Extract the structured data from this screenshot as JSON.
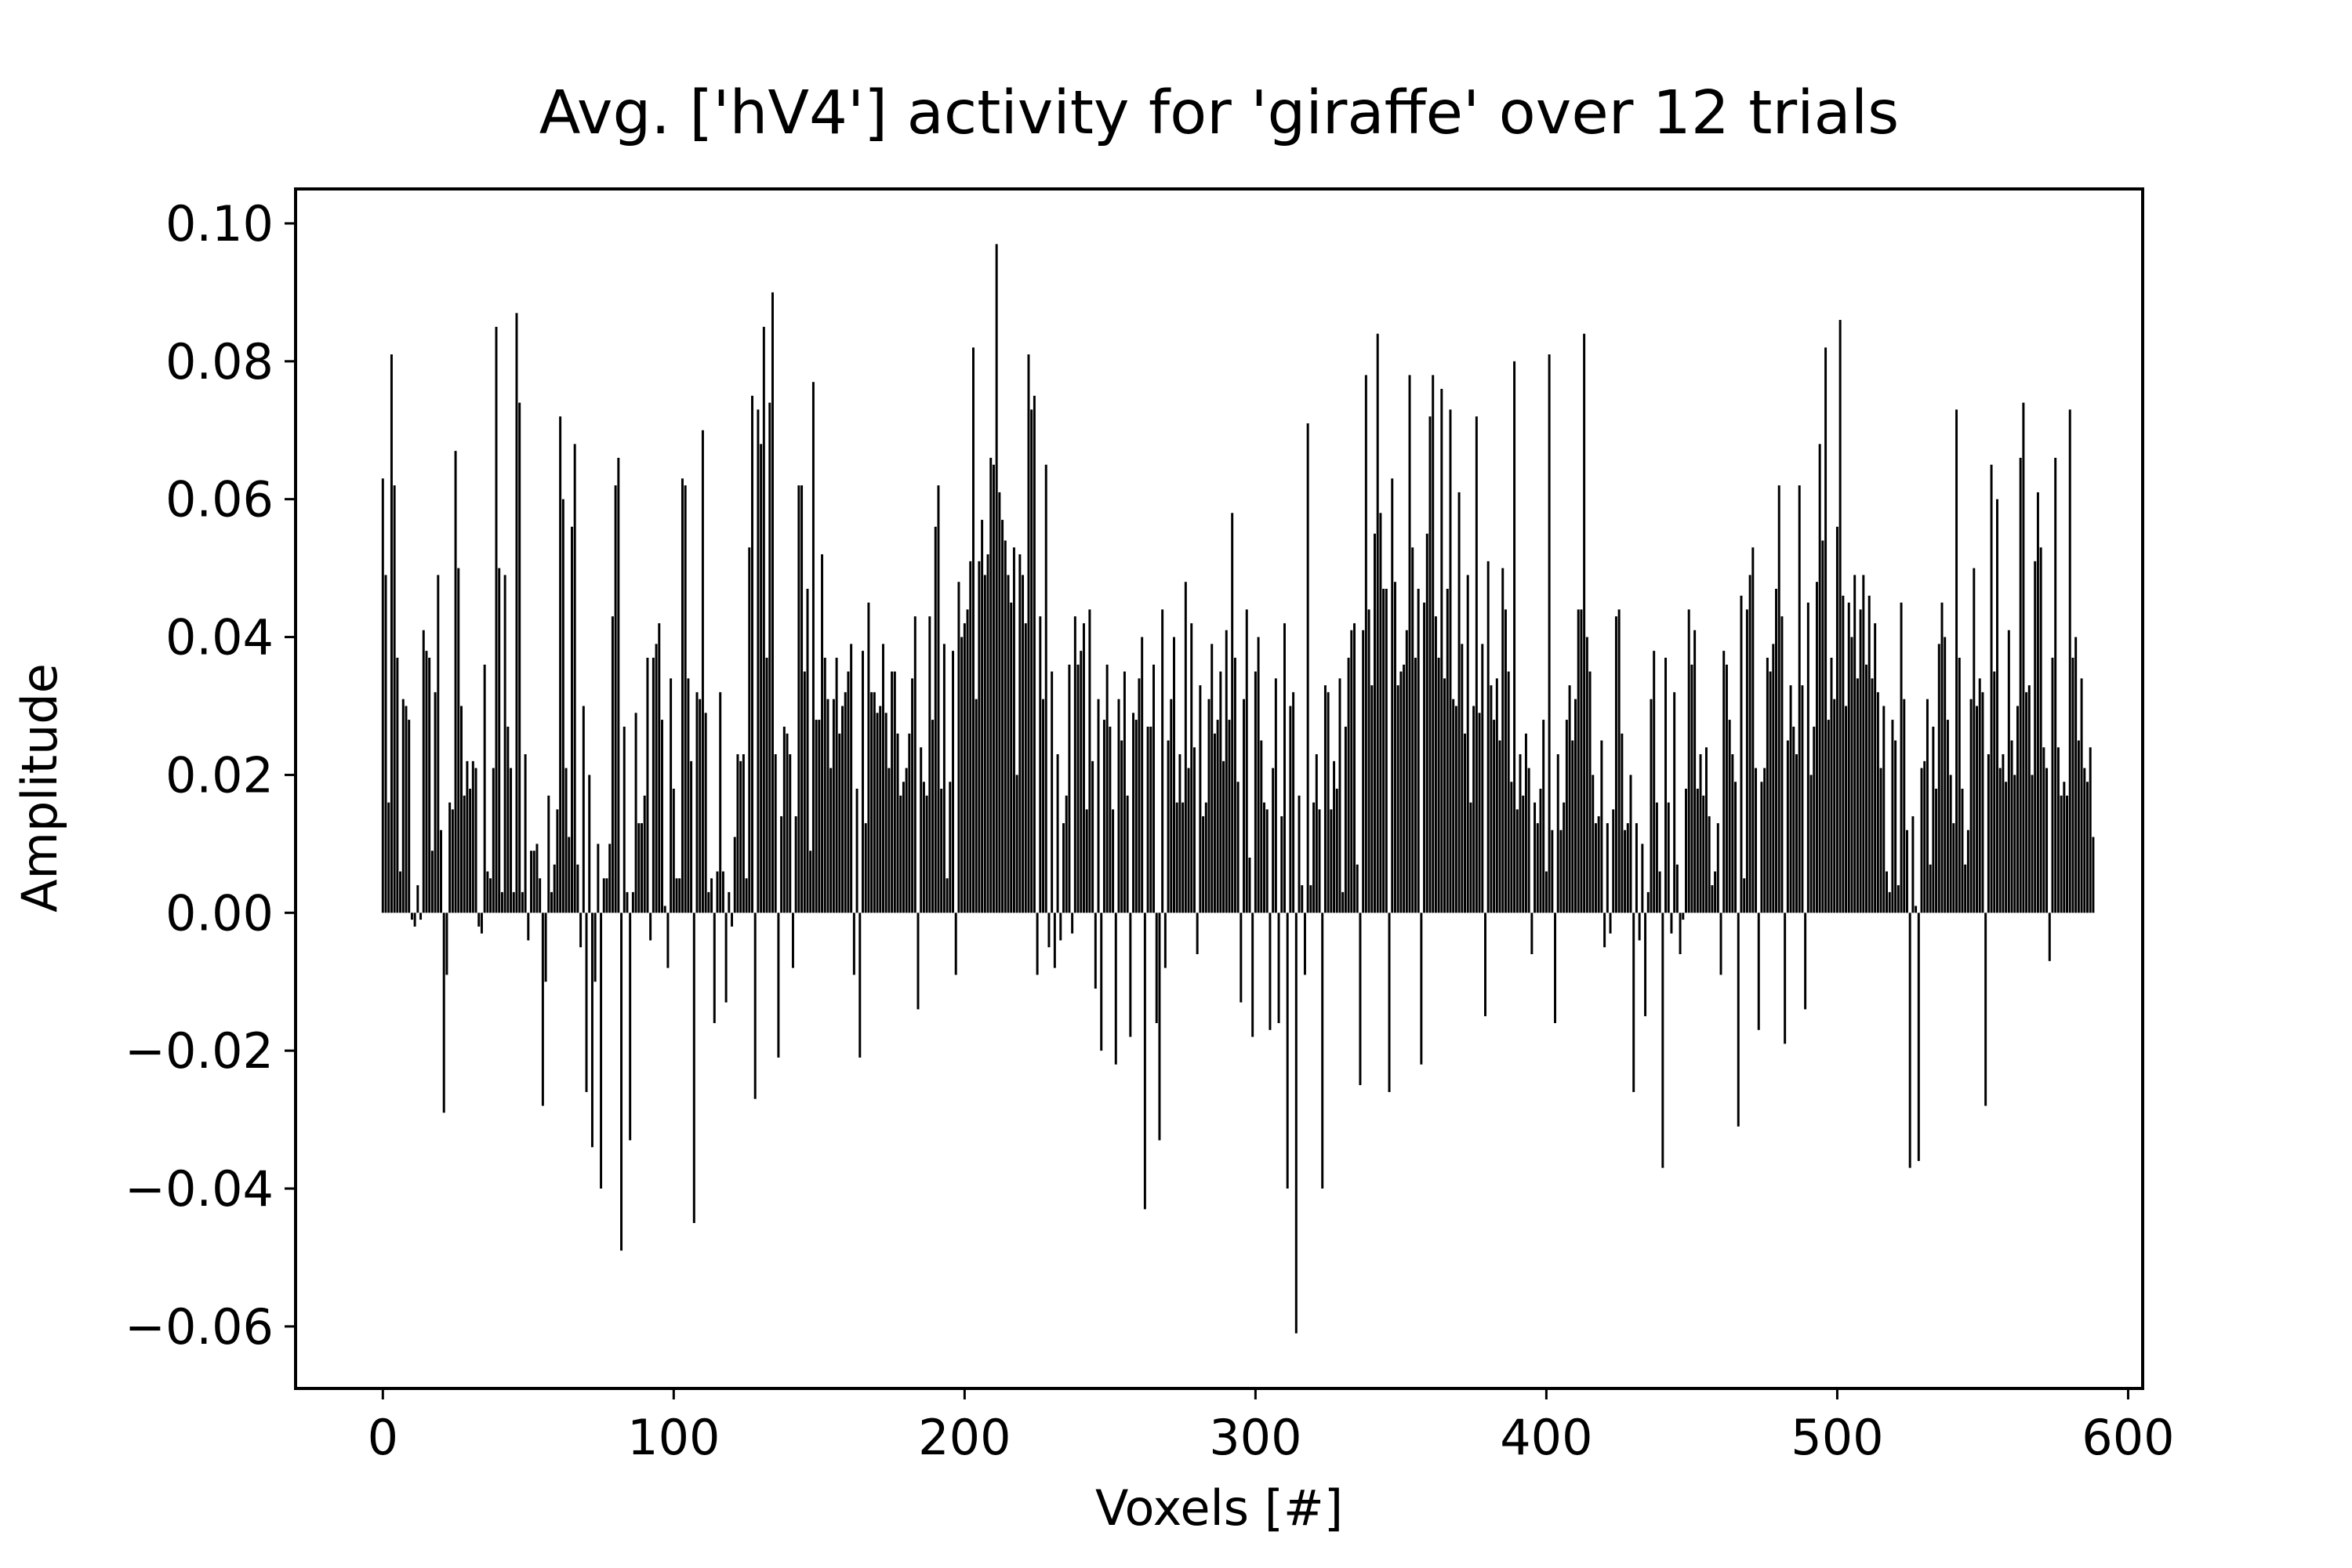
{
  "chart_data": {
    "type": "bar",
    "title": "Avg. ['hV4'] activity for 'giraffe' over 12 trials",
    "xlabel": "Voxels [#]",
    "ylabel": "Amplitude",
    "xlim": [
      -30,
      605
    ],
    "ylim": [
      -0.069,
      0.105
    ],
    "xticks": [
      0,
      100,
      200,
      300,
      400,
      500,
      600
    ],
    "xtick_labels": [
      "0",
      "100",
      "200",
      "300",
      "400",
      "500",
      "600"
    ],
    "yticks": [
      -0.06,
      -0.04,
      -0.02,
      0.0,
      0.02,
      0.04,
      0.06,
      0.08,
      0.1
    ],
    "ytick_labels": [
      "−0.06",
      "−0.04",
      "−0.02",
      "0.00",
      "0.02",
      "0.04",
      "0.06",
      "0.08",
      "0.10"
    ],
    "grid": false,
    "bar_color": "#000000",
    "series": [
      {
        "x_start": 0,
        "values": [
          0.063,
          0.049,
          0.016,
          0.081,
          0.062,
          0.037,
          0.006,
          0.031,
          0.03,
          0.028,
          -0.001,
          -0.002,
          0.004,
          -0.001,
          0.041,
          0.038,
          0.037,
          0.009,
          0.032,
          0.049,
          0.012,
          -0.029,
          -0.009,
          0.016,
          0.015,
          0.067,
          0.05,
          0.03,
          0.017,
          0.022,
          0.018,
          0.022,
          0.021,
          -0.002,
          -0.003,
          0.036,
          0.006,
          0.005,
          0.021,
          0.085,
          0.05,
          0.003,
          0.049,
          0.027,
          0.021,
          0.003,
          0.087,
          0.074,
          0.003,
          0.023,
          -0.004,
          0.009,
          0.009,
          0.01,
          0.005,
          -0.028,
          -0.01,
          0.017,
          0.003,
          0.007,
          0.015,
          0.072,
          0.06,
          0.021,
          0.011,
          0.056,
          0.068,
          0.007,
          -0.005,
          0.03,
          -0.026,
          0.02,
          -0.034,
          -0.01,
          0.01,
          -0.04,
          0.005,
          0.005,
          0.01,
          0.043,
          0.062,
          0.066,
          -0.049,
          0.027,
          0.003,
          -0.033,
          0.003,
          0.029,
          0.013,
          0.013,
          0.017,
          0.037,
          -0.004,
          0.037,
          0.039,
          0.042,
          0.028,
          0.001,
          -0.008,
          0.034,
          0.018,
          0.005,
          0.005,
          0.063,
          0.062,
          0.034,
          0.022,
          -0.045,
          0.032,
          0.031,
          0.07,
          0.029,
          0.003,
          0.005,
          -0.016,
          0.006,
          0.032,
          0.006,
          -0.013,
          0.003,
          -0.002,
          0.011,
          0.023,
          0.022,
          0.023,
          0.005,
          0.053,
          0.075,
          -0.027,
          0.073,
          0.068,
          0.085,
          0.037,
          0.074,
          0.09,
          0.023,
          -0.021,
          0.014,
          0.027,
          0.026,
          0.023,
          -0.008,
          0.014,
          0.062,
          0.062,
          0.035,
          0.047,
          0.009,
          0.077,
          0.028,
          0.028,
          0.052,
          0.037,
          0.031,
          0.021,
          0.031,
          0.037,
          0.026,
          0.03,
          0.032,
          0.035,
          0.039,
          -0.009,
          0.018,
          -0.021,
          0.038,
          0.013,
          0.045,
          0.032,
          0.032,
          0.029,
          0.03,
          0.039,
          0.029,
          0.021,
          0.035,
          0.035,
          0.026,
          0.017,
          0.019,
          0.021,
          0.026,
          0.034,
          0.043,
          -0.014,
          0.024,
          0.019,
          0.017,
          0.043,
          0.028,
          0.056,
          0.062,
          0.018,
          0.039,
          0.005,
          0.019,
          0.038,
          -0.009,
          0.048,
          0.04,
          0.042,
          0.044,
          0.051,
          0.082,
          0.031,
          0.051,
          0.057,
          0.049,
          0.052,
          0.066,
          0.065,
          0.097,
          0.061,
          0.057,
          0.054,
          0.049,
          0.045,
          0.053,
          0.02,
          0.052,
          0.049,
          0.042,
          0.081,
          0.073,
          0.075,
          -0.009,
          0.043,
          0.031,
          0.065,
          -0.005,
          0.035,
          -0.008,
          0.023,
          -0.004,
          0.013,
          0.017,
          0.036,
          -0.003,
          0.043,
          0.036,
          0.038,
          0.042,
          0.015,
          0.044,
          0.022,
          -0.011,
          0.031,
          -0.02,
          0.028,
          0.036,
          0.027,
          0.015,
          -0.022,
          0.031,
          0.025,
          0.035,
          0.017,
          -0.018,
          0.029,
          0.028,
          0.034,
          0.04,
          -0.043,
          0.027,
          0.027,
          0.036,
          -0.016,
          -0.033,
          0.044,
          -0.008,
          0.025,
          0.031,
          0.04,
          0.016,
          0.023,
          0.016,
          0.048,
          0.021,
          0.042,
          0.024,
          -0.006,
          0.033,
          0.014,
          0.016,
          0.031,
          0.039,
          0.026,
          0.028,
          0.035,
          0.022,
          0.041,
          0.028,
          0.058,
          0.037,
          0.019,
          -0.013,
          0.031,
          0.044,
          0.008,
          -0.018,
          0.035,
          0.04,
          0.025,
          0.016,
          0.015,
          -0.017,
          0.021,
          0.034,
          -0.016,
          0.014,
          0.042,
          -0.04,
          0.03,
          0.032,
          -0.061,
          0.017,
          0.004,
          -0.009,
          0.071,
          0.004,
          0.016,
          0.023,
          0.015,
          -0.04,
          0.033,
          0.032,
          0.015,
          0.022,
          0.018,
          0.034,
          0.003,
          0.027,
          0.037,
          0.041,
          0.042,
          0.007,
          -0.025,
          0.041,
          0.078,
          0.044,
          0.033,
          0.055,
          0.084,
          0.058,
          0.047,
          0.047,
          -0.026,
          0.063,
          0.048,
          0.033,
          0.035,
          0.036,
          0.041,
          0.078,
          0.053,
          0.037,
          0.047,
          -0.022,
          0.045,
          0.055,
          0.072,
          0.078,
          0.043,
          0.037,
          0.076,
          0.034,
          0.047,
          0.073,
          0.031,
          0.03,
          0.061,
          0.039,
          0.026,
          0.049,
          0.016,
          0.03,
          0.072,
          0.029,
          0.039,
          -0.015,
          0.051,
          0.033,
          0.028,
          0.034,
          0.025,
          0.05,
          0.044,
          0.035,
          0.019,
          0.08,
          0.015,
          0.023,
          0.017,
          0.026,
          0.021,
          -0.006,
          0.016,
          0.013,
          0.018,
          0.028,
          0.006,
          0.081,
          0.012,
          -0.016,
          0.023,
          0.012,
          0.016,
          0.028,
          0.033,
          0.025,
          0.031,
          0.044,
          0.044,
          0.084,
          0.04,
          0.035,
          0.02,
          0.013,
          0.014,
          0.025,
          -0.005,
          0.013,
          -0.003,
          0.015,
          0.043,
          0.044,
          0.026,
          0.012,
          0.013,
          0.02,
          -0.026,
          0.013,
          -0.004,
          0.01,
          -0.015,
          0.003,
          0.031,
          0.038,
          0.016,
          0.006,
          -0.037,
          0.037,
          0.016,
          -0.003,
          0.032,
          0.007,
          -0.006,
          -0.001,
          0.018,
          0.044,
          0.036,
          0.041,
          0.018,
          0.023,
          0.017,
          0.024,
          0.014,
          0.004,
          0.006,
          0.013,
          -0.009,
          0.038,
          0.036,
          0.028,
          0.023,
          0.019,
          -0.031,
          0.046,
          0.005,
          0.044,
          0.049,
          0.053,
          0.021,
          -0.017,
          0.019,
          0.021,
          0.037,
          0.035,
          0.039,
          0.047,
          0.062,
          0.043,
          -0.019,
          0.025,
          0.033,
          0.027,
          0.023,
          0.062,
          0.033,
          -0.014,
          0.045,
          0.02,
          0.027,
          0.048,
          0.068,
          0.054,
          0.082,
          0.028,
          0.037,
          0.031,
          0.056,
          0.086,
          0.046,
          0.03,
          0.045,
          0.04,
          0.049,
          0.034,
          0.044,
          0.049,
          0.036,
          0.046,
          0.034,
          0.042,
          0.032,
          0.021,
          0.03,
          0.006,
          0.003,
          0.028,
          0.025,
          0.004,
          0.045,
          0.031,
          0.012,
          -0.037,
          0.014,
          0.001,
          -0.036,
          0.021,
          0.022,
          0.031,
          0.007,
          0.027,
          0.018,
          0.039,
          0.045,
          0.04,
          0.028,
          0.02,
          0.013,
          0.073,
          0.037,
          0.018,
          0.007,
          0.012,
          0.031,
          0.05,
          0.03,
          0.034,
          0.032,
          -0.028,
          0.023,
          0.065,
          0.035,
          0.06,
          0.021,
          0.023,
          0.019,
          0.041,
          0.025,
          0.02,
          0.03,
          0.066,
          0.074,
          0.032,
          0.033,
          0.02,
          0.051,
          0.061,
          0.053,
          0.024,
          0.021,
          -0.007,
          0.037,
          0.066,
          0.024,
          0.017,
          0.019,
          0.017,
          0.073,
          0.037,
          0.04,
          0.025,
          0.034,
          0.021,
          0.019,
          0.024,
          0.011
        ]
      }
    ]
  }
}
